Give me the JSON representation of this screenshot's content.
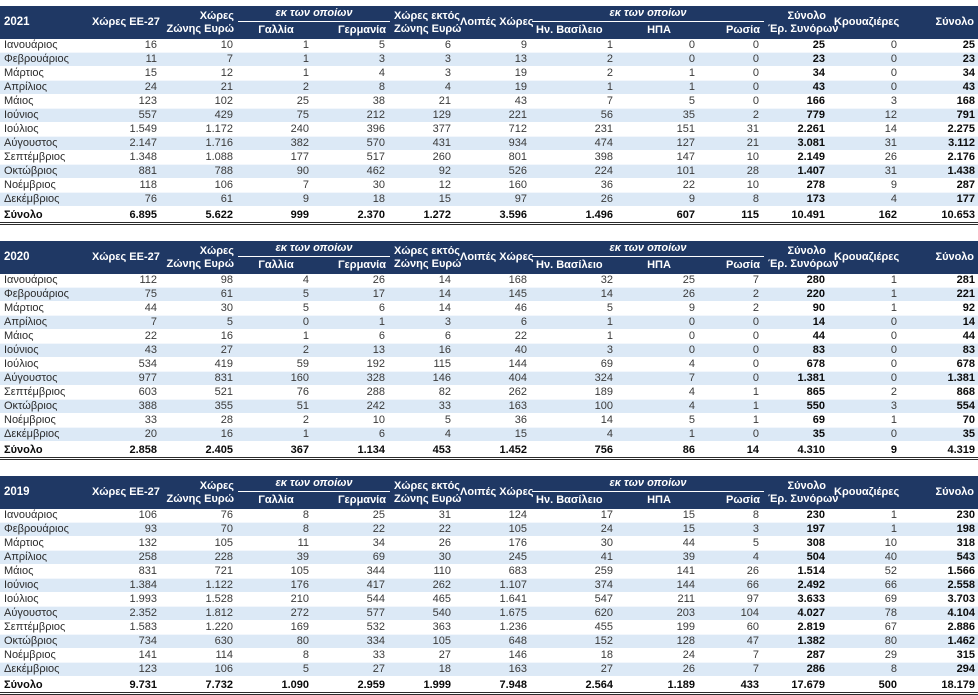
{
  "theme": {
    "header_bg": "#1f3864",
    "header_text": "#ffffff",
    "row_alt_bg": "#dce9f6",
    "row_bg": "#ffffff",
    "body_text": "#3a3a3a",
    "bold_text": "#0a0a0a"
  },
  "columns": {
    "ee27": "Χώρες ΕΕ-27",
    "eurozone_l1": "Χώρες",
    "eurozone_l2": "Ζώνης Ευρώ",
    "of_which_1": "εκ των οποίων",
    "france": "Γαλλία",
    "germany": "Γερμανία",
    "non_eurozone_l1": "Χώρες εκτός",
    "non_eurozone_l2": "Ζώνης Ευρώ",
    "other_countries": "Λοιπές Χώρες",
    "of_which_2": "εκ των οποίων",
    "uk": "Ην. Βασίλειο",
    "usa": "ΗΠΑ",
    "russia": "Ρωσία",
    "land_total_l1": "Σύνολο",
    "land_total_l2": "Έρ. Συνόρων",
    "cruises": "Κρουαζιέρες",
    "total": "Σύνολο"
  },
  "tables": [
    {
      "year": "2021",
      "rows": [
        {
          "label": "Ιανουάριος",
          "values": [
            "16",
            "10",
            "1",
            "5",
            "6",
            "9",
            "1",
            "0",
            "0",
            "25",
            "0",
            "25"
          ]
        },
        {
          "label": "Φεβρουάριος",
          "values": [
            "11",
            "7",
            "1",
            "3",
            "3",
            "13",
            "2",
            "0",
            "0",
            "23",
            "0",
            "23"
          ]
        },
        {
          "label": "Μάρτιος",
          "values": [
            "15",
            "12",
            "1",
            "4",
            "3",
            "19",
            "2",
            "1",
            "0",
            "34",
            "0",
            "34"
          ]
        },
        {
          "label": "Απρίλιος",
          "values": [
            "24",
            "21",
            "2",
            "8",
            "4",
            "19",
            "1",
            "1",
            "0",
            "43",
            "0",
            "43"
          ]
        },
        {
          "label": "Μάιος",
          "values": [
            "123",
            "102",
            "25",
            "38",
            "21",
            "43",
            "7",
            "5",
            "0",
            "166",
            "3",
            "168"
          ]
        },
        {
          "label": "Ιούνιος",
          "values": [
            "557",
            "429",
            "75",
            "212",
            "129",
            "221",
            "56",
            "35",
            "2",
            "779",
            "12",
            "791"
          ]
        },
        {
          "label": "Ιούλιος",
          "values": [
            "1.549",
            "1.172",
            "240",
            "396",
            "377",
            "712",
            "231",
            "151",
            "31",
            "2.261",
            "14",
            "2.275"
          ]
        },
        {
          "label": "Αύγουστος",
          "values": [
            "2.147",
            "1.716",
            "382",
            "570",
            "431",
            "934",
            "474",
            "127",
            "21",
            "3.081",
            "31",
            "3.112"
          ]
        },
        {
          "label": "Σεπτέμβριος",
          "values": [
            "1.348",
            "1.088",
            "177",
            "517",
            "260",
            "801",
            "398",
            "147",
            "10",
            "2.149",
            "26",
            "2.176"
          ]
        },
        {
          "label": "Οκτώβριος",
          "values": [
            "881",
            "788",
            "90",
            "462",
            "92",
            "526",
            "224",
            "101",
            "28",
            "1.407",
            "31",
            "1.438"
          ]
        },
        {
          "label": "Νοέμβριος",
          "values": [
            "118",
            "106",
            "7",
            "30",
            "12",
            "160",
            "36",
            "22",
            "10",
            "278",
            "9",
            "287"
          ]
        },
        {
          "label": "Δεκέμβριος",
          "values": [
            "76",
            "61",
            "9",
            "18",
            "15",
            "97",
            "26",
            "9",
            "8",
            "173",
            "4",
            "177"
          ]
        }
      ],
      "total": {
        "label": "Σύνολο",
        "values": [
          "6.895",
          "5.622",
          "999",
          "2.370",
          "1.272",
          "3.596",
          "1.496",
          "607",
          "115",
          "10.491",
          "162",
          "10.653"
        ]
      }
    },
    {
      "year": "2020",
      "rows": [
        {
          "label": "Ιανουάριος",
          "values": [
            "112",
            "98",
            "4",
            "26",
            "14",
            "168",
            "32",
            "25",
            "7",
            "280",
            "1",
            "281"
          ]
        },
        {
          "label": "Φεβρουάριος",
          "values": [
            "75",
            "61",
            "5",
            "17",
            "14",
            "145",
            "14",
            "26",
            "2",
            "220",
            "1",
            "221"
          ]
        },
        {
          "label": "Μάρτιος",
          "values": [
            "44",
            "30",
            "5",
            "6",
            "14",
            "46",
            "5",
            "9",
            "2",
            "90",
            "1",
            "92"
          ]
        },
        {
          "label": "Απρίλιος",
          "values": [
            "7",
            "5",
            "0",
            "1",
            "3",
            "6",
            "1",
            "0",
            "0",
            "14",
            "0",
            "14"
          ]
        },
        {
          "label": "Μάιος",
          "values": [
            "22",
            "16",
            "1",
            "6",
            "6",
            "22",
            "1",
            "0",
            "0",
            "44",
            "0",
            "44"
          ]
        },
        {
          "label": "Ιούνιος",
          "values": [
            "43",
            "27",
            "2",
            "13",
            "16",
            "40",
            "3",
            "0",
            "0",
            "83",
            "0",
            "83"
          ]
        },
        {
          "label": "Ιούλιος",
          "values": [
            "534",
            "419",
            "59",
            "192",
            "115",
            "144",
            "69",
            "4",
            "0",
            "678",
            "0",
            "678"
          ]
        },
        {
          "label": "Αύγουστος",
          "values": [
            "977",
            "831",
            "160",
            "328",
            "146",
            "404",
            "324",
            "7",
            "0",
            "1.381",
            "0",
            "1.381"
          ]
        },
        {
          "label": "Σεπτέμβριος",
          "values": [
            "603",
            "521",
            "76",
            "288",
            "82",
            "262",
            "189",
            "4",
            "1",
            "865",
            "2",
            "868"
          ]
        },
        {
          "label": "Οκτώβριος",
          "values": [
            "388",
            "355",
            "51",
            "242",
            "33",
            "163",
            "100",
            "4",
            "1",
            "550",
            "3",
            "554"
          ]
        },
        {
          "label": "Νοέμβριος",
          "values": [
            "33",
            "28",
            "2",
            "10",
            "5",
            "36",
            "14",
            "5",
            "1",
            "69",
            "1",
            "70"
          ]
        },
        {
          "label": "Δεκέμβριος",
          "values": [
            "20",
            "16",
            "1",
            "6",
            "4",
            "15",
            "4",
            "1",
            "0",
            "35",
            "0",
            "35"
          ]
        }
      ],
      "total": {
        "label": "Σύνολο",
        "values": [
          "2.858",
          "2.405",
          "367",
          "1.134",
          "453",
          "1.452",
          "756",
          "86",
          "14",
          "4.310",
          "9",
          "4.319"
        ]
      }
    },
    {
      "year": "2019",
      "rows": [
        {
          "label": "Ιανουάριος",
          "values": [
            "106",
            "76",
            "8",
            "25",
            "31",
            "124",
            "17",
            "15",
            "8",
            "230",
            "1",
            "230"
          ]
        },
        {
          "label": "Φεβρουάριος",
          "values": [
            "93",
            "70",
            "8",
            "22",
            "22",
            "105",
            "24",
            "15",
            "3",
            "197",
            "1",
            "198"
          ]
        },
        {
          "label": "Μάρτιος",
          "values": [
            "132",
            "105",
            "11",
            "34",
            "26",
            "176",
            "30",
            "44",
            "5",
            "308",
            "10",
            "318"
          ]
        },
        {
          "label": "Απρίλιος",
          "values": [
            "258",
            "228",
            "39",
            "69",
            "30",
            "245",
            "41",
            "39",
            "4",
            "504",
            "40",
            "543"
          ]
        },
        {
          "label": "Μάιος",
          "values": [
            "831",
            "721",
            "105",
            "344",
            "110",
            "683",
            "259",
            "141",
            "26",
            "1.514",
            "52",
            "1.566"
          ]
        },
        {
          "label": "Ιούνιος",
          "values": [
            "1.384",
            "1.122",
            "176",
            "417",
            "262",
            "1.107",
            "374",
            "144",
            "66",
            "2.492",
            "66",
            "2.558"
          ]
        },
        {
          "label": "Ιούλιος",
          "values": [
            "1.993",
            "1.528",
            "210",
            "544",
            "465",
            "1.641",
            "547",
            "211",
            "97",
            "3.633",
            "69",
            "3.703"
          ]
        },
        {
          "label": "Αύγουστος",
          "values": [
            "2.352",
            "1.812",
            "272",
            "577",
            "540",
            "1.675",
            "620",
            "203",
            "104",
            "4.027",
            "78",
            "4.104"
          ]
        },
        {
          "label": "Σεπτέμβριος",
          "values": [
            "1.583",
            "1.220",
            "169",
            "532",
            "363",
            "1.236",
            "455",
            "199",
            "60",
            "2.819",
            "67",
            "2.886"
          ]
        },
        {
          "label": "Οκτώβριος",
          "values": [
            "734",
            "630",
            "80",
            "334",
            "105",
            "648",
            "152",
            "128",
            "47",
            "1.382",
            "80",
            "1.462"
          ]
        },
        {
          "label": "Νοέμβριος",
          "values": [
            "141",
            "114",
            "8",
            "33",
            "27",
            "146",
            "18",
            "24",
            "7",
            "287",
            "29",
            "315"
          ]
        },
        {
          "label": "Δεκέμβριος",
          "values": [
            "123",
            "106",
            "5",
            "27",
            "18",
            "163",
            "27",
            "26",
            "7",
            "286",
            "8",
            "294"
          ]
        }
      ],
      "total": {
        "label": "Σύνολο",
        "values": [
          "9.731",
          "7.732",
          "1.090",
          "2.959",
          "1.999",
          "7.948",
          "2.564",
          "1.189",
          "433",
          "17.679",
          "500",
          "18.179"
        ]
      }
    }
  ]
}
